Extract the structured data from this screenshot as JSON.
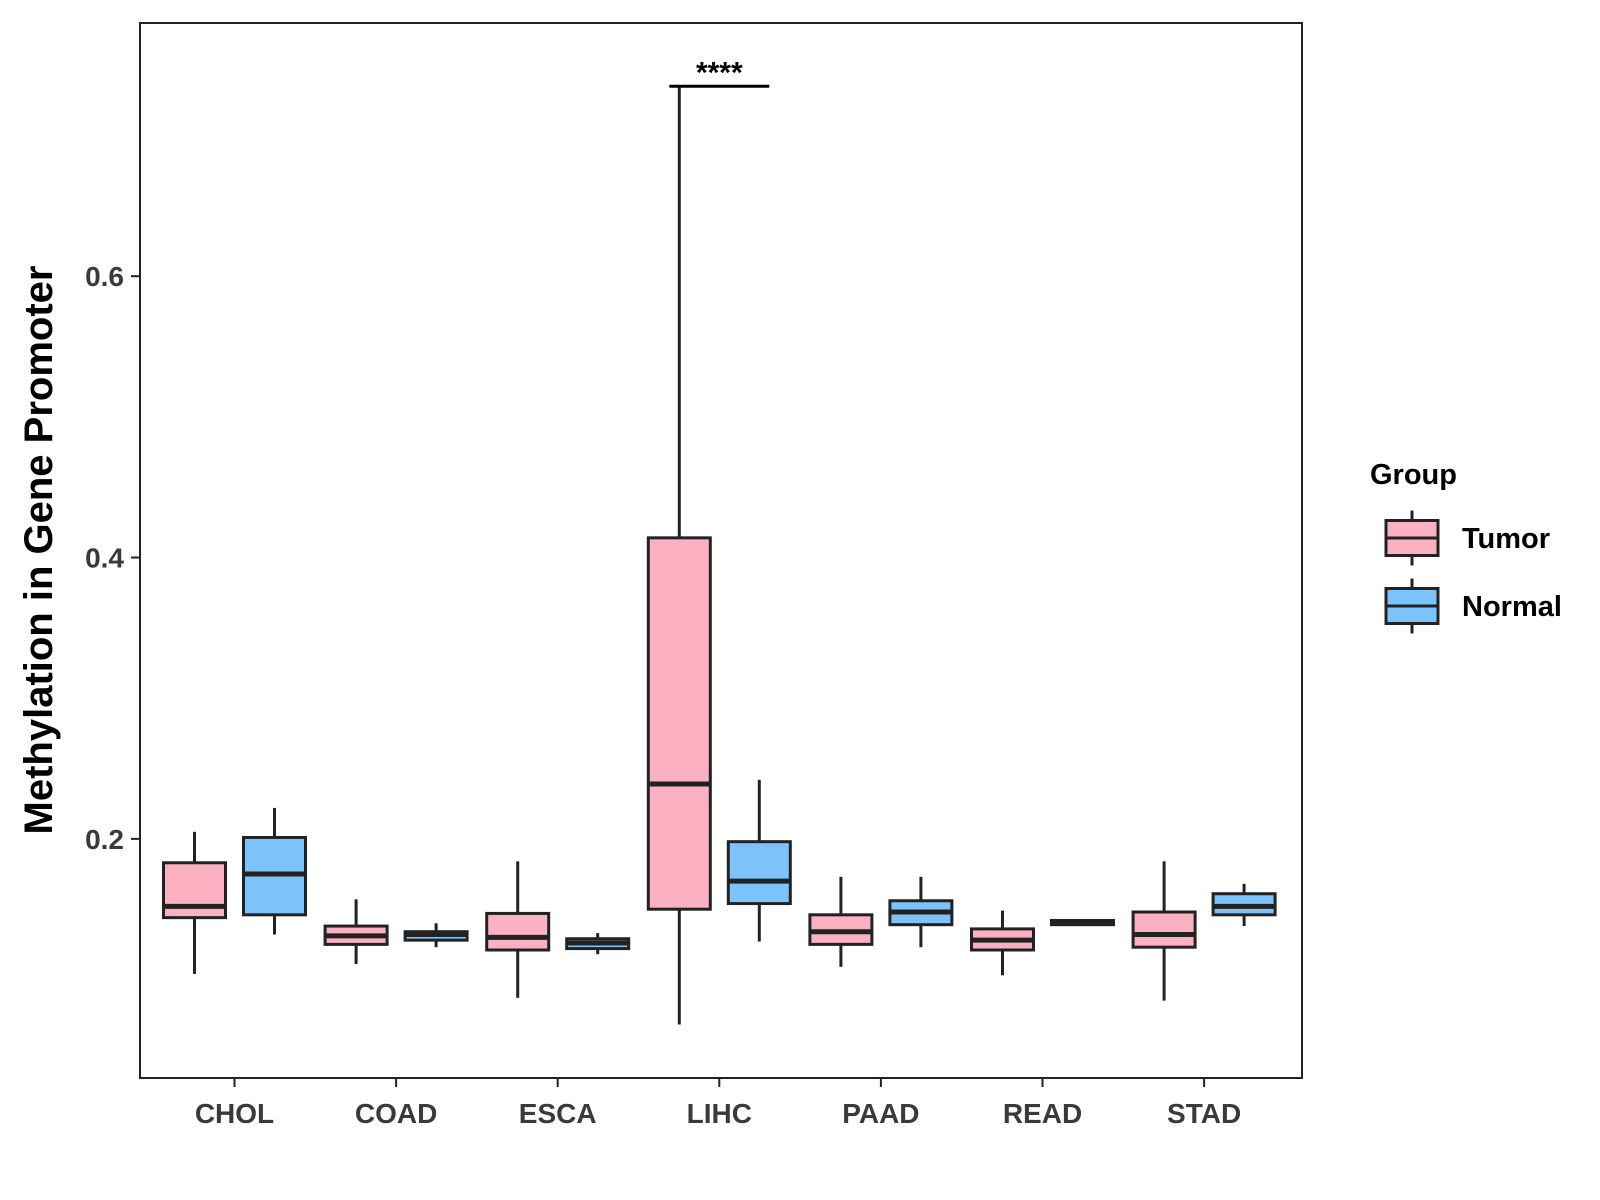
{
  "chart_data": {
    "type": "boxplot",
    "title": "",
    "xlabel": "",
    "ylabel": "Methylation in Gene Promoter",
    "ylim": [
      0.03,
      0.78
    ],
    "yticks": [
      0.2,
      0.4,
      0.6
    ],
    "ytick_labels": [
      "0.2",
      "0.4",
      "0.6"
    ],
    "categories": [
      "CHOL",
      "COAD",
      "ESCA",
      "LIHC",
      "PAAD",
      "READ",
      "STAD"
    ],
    "legend": {
      "title": "Group",
      "position": "right",
      "entries": [
        {
          "name": "Tumor",
          "color": "#fbb1c2"
        },
        {
          "name": "Normal",
          "color": "#7cc3fb"
        }
      ]
    },
    "series": [
      {
        "name": "Tumor",
        "color": "#fbb1c2",
        "boxes": [
          {
            "min": 0.104,
            "q1": 0.144,
            "median": 0.152,
            "q3": 0.183,
            "max": 0.205
          },
          {
            "min": 0.111,
            "q1": 0.125,
            "median": 0.131,
            "q3": 0.138,
            "max": 0.157
          },
          {
            "min": 0.087,
            "q1": 0.121,
            "median": 0.13,
            "q3": 0.147,
            "max": 0.184
          },
          {
            "min": 0.068,
            "q1": 0.15,
            "median": 0.239,
            "q3": 0.414,
            "max": 0.735
          },
          {
            "min": 0.109,
            "q1": 0.125,
            "median": 0.134,
            "q3": 0.146,
            "max": 0.173
          },
          {
            "min": 0.103,
            "q1": 0.121,
            "median": 0.128,
            "q3": 0.136,
            "max": 0.149
          },
          {
            "min": 0.085,
            "q1": 0.123,
            "median": 0.132,
            "q3": 0.148,
            "max": 0.184
          }
        ]
      },
      {
        "name": "Normal",
        "color": "#7cc3fb",
        "boxes": [
          {
            "min": 0.132,
            "q1": 0.146,
            "median": 0.175,
            "q3": 0.201,
            "max": 0.222
          },
          {
            "min": 0.123,
            "q1": 0.128,
            "median": 0.132,
            "q3": 0.134,
            "max": 0.14
          },
          {
            "min": 0.118,
            "q1": 0.122,
            "median": 0.126,
            "q3": 0.129,
            "max": 0.133
          },
          {
            "min": 0.127,
            "q1": 0.154,
            "median": 0.17,
            "q3": 0.198,
            "max": 0.242
          },
          {
            "min": 0.123,
            "q1": 0.139,
            "median": 0.148,
            "q3": 0.156,
            "max": 0.173
          },
          {
            "min": 0.139,
            "q1": 0.139,
            "median": 0.141,
            "q3": 0.142,
            "max": 0.142
          },
          {
            "min": 0.138,
            "q1": 0.146,
            "median": 0.152,
            "q3": 0.161,
            "max": 0.168
          }
        ]
      }
    ],
    "annotations": [
      {
        "category": "LIHC",
        "text": "****",
        "y": 0.735
      }
    ]
  }
}
